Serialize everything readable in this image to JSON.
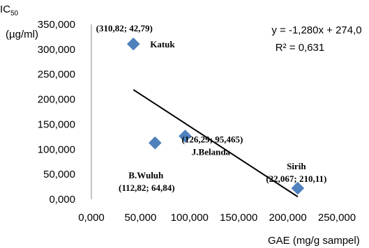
{
  "chart_data": {
    "type": "scatter",
    "xlabel": "GAE (mg/g sampel)",
    "ylabel_main": "IC",
    "ylabel_sub": "50",
    "ylabel_unit": "(µg/ml)",
    "xlim": [
      0,
      250
    ],
    "ylim": [
      0,
      350
    ],
    "x_ticks": [
      0,
      50,
      100,
      150,
      200,
      250
    ],
    "y_ticks": [
      0,
      50,
      100,
      150,
      200,
      250,
      300,
      350
    ],
    "x_tick_labels": [
      "0,000",
      "50,000",
      "100,000",
      "150,000",
      "200,000",
      "250,000"
    ],
    "y_tick_labels": [
      "0,000",
      "50,000",
      "100,000",
      "150,000",
      "200,000",
      "250,000",
      "300,000",
      "350,000"
    ],
    "marker_color": "#4f81bd",
    "points": [
      {
        "x": 42.79,
        "y": 310.82,
        "label": "Katuk",
        "coords": "(310,82; 42,79)"
      },
      {
        "x": 64.84,
        "y": 112.82,
        "label": "B.Wuluh",
        "coords": "(112,82; 64,84)"
      },
      {
        "x": 95.465,
        "y": 126.29,
        "label": "J.Belanda",
        "coords": "(126,29; 95,465)"
      },
      {
        "x": 210.11,
        "y": 22.067,
        "label": "Sirih",
        "coords": "(22,067; 210,11)"
      }
    ],
    "trendline": {
      "slope": -1.28,
      "intercept": 274.0,
      "x_range": [
        42.79,
        210.11
      ]
    },
    "equation": "y = -1,280x + 274,0",
    "r_squared": "R² = 0,631"
  }
}
